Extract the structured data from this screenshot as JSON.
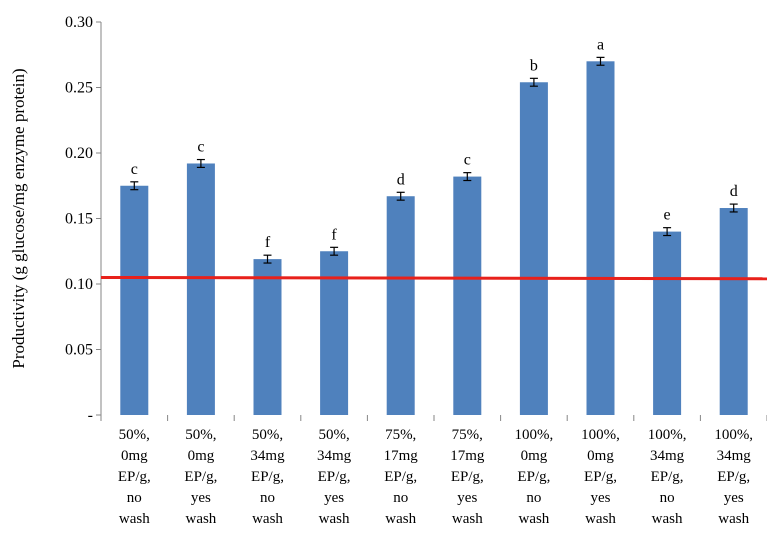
{
  "chart_data": {
    "type": "bar",
    "title": "",
    "xlabel": "",
    "ylabel": "Productivity (g glucose/mg enzyme protein)",
    "ylim": [
      0,
      0.3
    ],
    "yticks": [
      "-",
      "0.05",
      "0.10",
      "0.15",
      "0.20",
      "0.25",
      "0.30"
    ],
    "categories": [
      [
        "50%,",
        "0mg",
        "EP/g,",
        "no",
        "wash"
      ],
      [
        "50%,",
        "0mg",
        "EP/g,",
        "yes",
        "wash"
      ],
      [
        "50%,",
        "34mg",
        "EP/g,",
        "no",
        "wash"
      ],
      [
        "50%,",
        "34mg",
        "EP/g,",
        "yes",
        "wash"
      ],
      [
        "75%,",
        "17mg",
        "EP/g,",
        "no",
        "wash"
      ],
      [
        "75%,",
        "17mg",
        "EP/g,",
        "yes",
        "wash"
      ],
      [
        "100%,",
        "0mg",
        "EP/g,",
        "no",
        "wash"
      ],
      [
        "100%,",
        "0mg",
        "EP/g,",
        "yes",
        "wash"
      ],
      [
        "100%,",
        "34mg",
        "EP/g,",
        "no",
        "wash"
      ],
      [
        "100%,",
        "34mg",
        "EP/g,",
        "yes",
        "wash"
      ]
    ],
    "values": [
      0.175,
      0.192,
      0.119,
      0.125,
      0.167,
      0.182,
      0.254,
      0.27,
      0.14,
      0.158
    ],
    "errors": [
      0.003,
      0.003,
      0.003,
      0.003,
      0.003,
      0.003,
      0.003,
      0.003,
      0.003,
      0.003
    ],
    "significance_letters": [
      "c",
      "c",
      "f",
      "f",
      "d",
      "c",
      "b",
      "a",
      "e",
      "d"
    ],
    "reference_line": {
      "y_start": 0.105,
      "y_end": 0.104
    },
    "colors": {
      "bar": "#4F81BD",
      "reference_line": "#E8211B",
      "error_bar": "#000000"
    },
    "grid": false,
    "legend": "none"
  }
}
